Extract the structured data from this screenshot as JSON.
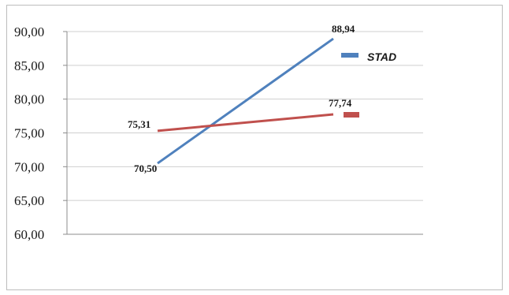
{
  "chart_data": {
    "type": "line",
    "title": "",
    "xlabel": "",
    "ylabel": "",
    "ylim": [
      60,
      90
    ],
    "yticks": [
      "60,00",
      "65,00",
      "70,00",
      "75,00",
      "80,00",
      "85,00",
      "90,00"
    ],
    "grid": true,
    "legend_position": "right",
    "series": [
      {
        "name": "STAD",
        "color": "#4f81bd",
        "values": [
          70.5,
          88.94
        ],
        "labels": [
          "70,50",
          "88,94"
        ]
      },
      {
        "color": "#c0504d",
        "values": [
          75.31,
          77.74
        ],
        "labels": [
          "75,31",
          "77,74"
        ]
      }
    ]
  }
}
